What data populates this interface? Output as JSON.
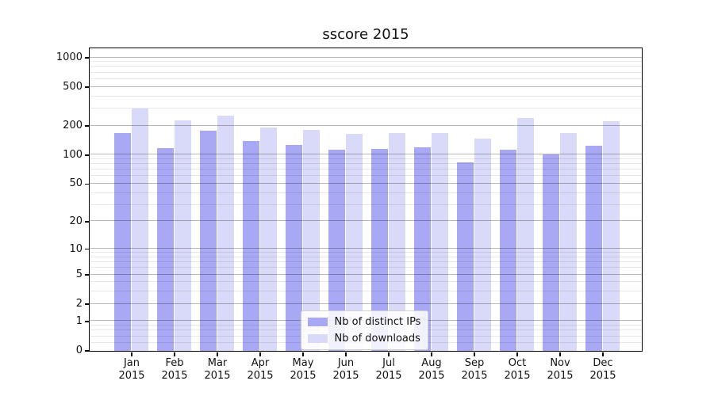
{
  "chart_data": {
    "type": "bar",
    "title": "sscore 2015",
    "categories": [
      "Jan 2015",
      "Feb 2015",
      "Mar 2015",
      "Apr 2015",
      "May 2015",
      "Jun 2015",
      "Jul 2015",
      "Aug 2015",
      "Sep 2015",
      "Oct 2015",
      "Nov 2015",
      "Dec 2015"
    ],
    "series": [
      {
        "name": "Nb of distinct IPs",
        "color": "#a8a8f5",
        "values": [
          166,
          118,
          177,
          140,
          127,
          112,
          116,
          120,
          83,
          112,
          100,
          125
        ]
      },
      {
        "name": "Nb of downloads",
        "color": "#d9d9fa",
        "values": [
          297,
          228,
          251,
          192,
          182,
          163,
          169,
          166,
          148,
          237,
          169,
          220
        ]
      }
    ],
    "xlabel": "",
    "ylabel": "",
    "yscale": "log(v+1)",
    "yticks": [
      0,
      1,
      2,
      5,
      10,
      20,
      50,
      100,
      200,
      500,
      1000
    ],
    "ylim": [
      0,
      1250
    ],
    "grid": "horizontal, major and minor",
    "legend_position": "lower center"
  }
}
